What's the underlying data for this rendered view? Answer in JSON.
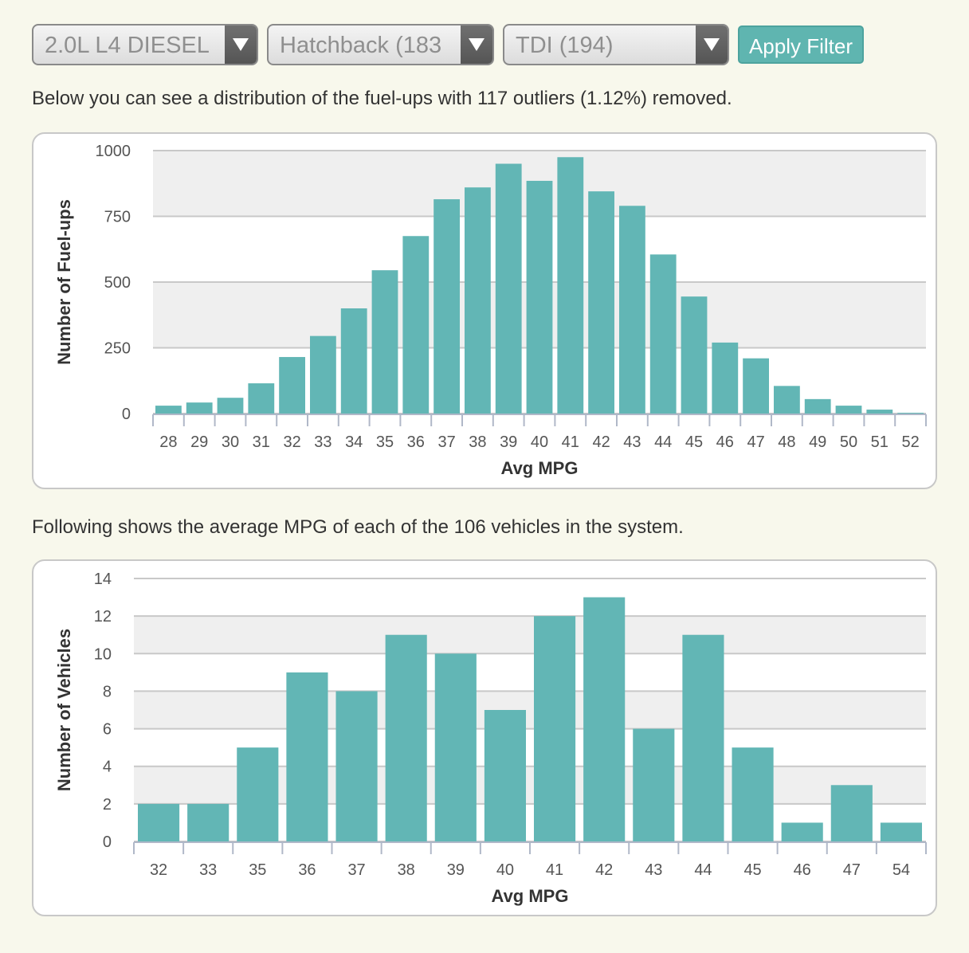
{
  "filters": {
    "engine": "2.0L L4 DIESEL",
    "body": "Hatchback (183",
    "trim": "TDI (194)",
    "apply_label": "Apply Filter"
  },
  "text": {
    "fuelups_desc": "Below you can see a distribution of the fuel-ups with 117 outliers (1.12%) removed.",
    "vehicles_desc": "Following shows the average MPG of each of the 106 vehicles in the system."
  },
  "colors": {
    "bar": "#62b6b5",
    "band": "#efefef",
    "grid": "#c8c8c8"
  },
  "chart_data": [
    {
      "type": "bar",
      "title": "",
      "xlabel": "Avg MPG",
      "ylabel": "Number of Fuel-ups",
      "categories": [
        "28",
        "29",
        "30",
        "31",
        "32",
        "33",
        "34",
        "35",
        "36",
        "37",
        "38",
        "39",
        "40",
        "41",
        "42",
        "43",
        "44",
        "45",
        "46",
        "47",
        "48",
        "49",
        "50",
        "51",
        "52"
      ],
      "values": [
        30,
        42,
        60,
        115,
        215,
        295,
        400,
        545,
        675,
        815,
        860,
        950,
        885,
        975,
        845,
        790,
        605,
        445,
        270,
        210,
        105,
        55,
        30,
        15,
        3
      ],
      "ylim": [
        0,
        1000
      ],
      "yticks": [
        0,
        250,
        500,
        750,
        1000
      ]
    },
    {
      "type": "bar",
      "title": "",
      "xlabel": "Avg MPG",
      "ylabel": "Number of Vehicles",
      "categories": [
        "32",
        "33",
        "35",
        "36",
        "37",
        "38",
        "39",
        "40",
        "41",
        "42",
        "43",
        "44",
        "45",
        "46",
        "47",
        "54"
      ],
      "values": [
        2,
        2,
        5,
        9,
        8,
        11,
        10,
        7,
        12,
        13,
        6,
        11,
        5,
        1,
        3,
        1
      ],
      "ylim": [
        0,
        14
      ],
      "yticks": [
        0,
        2,
        4,
        6,
        8,
        10,
        12,
        14
      ]
    }
  ]
}
